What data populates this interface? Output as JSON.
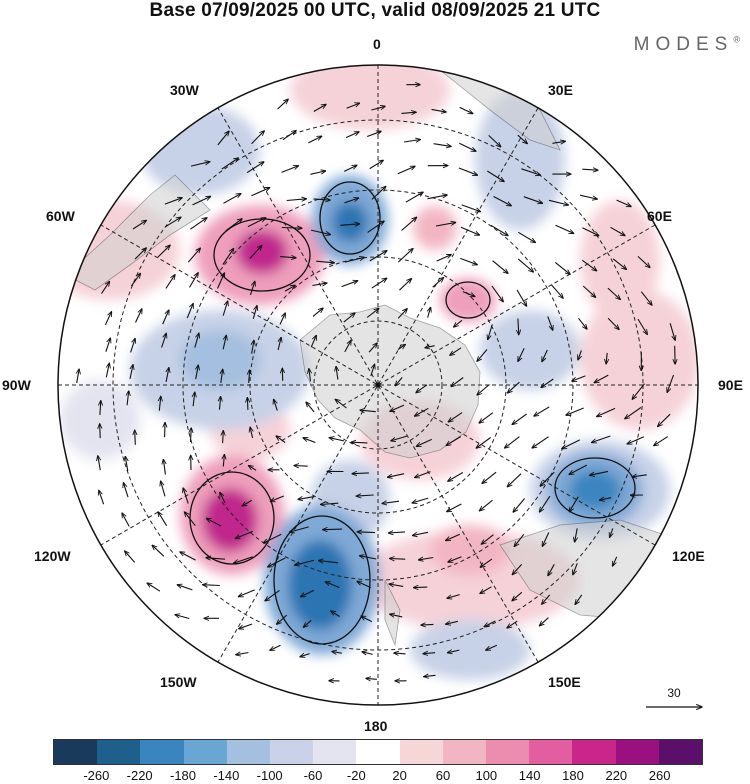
{
  "title": "Base 07/09/2025 00 UTC, valid 08/09/2025 21 UTC",
  "brand": "MODES",
  "brand_mark": "®",
  "map": {
    "projection": "south-polar-stereographic",
    "meridian_labels": {
      "m0": "0",
      "m30e": "30E",
      "m60e": "60E",
      "m90e": "90E",
      "m120e": "120E",
      "m150e": "150E",
      "m180": "180",
      "m150w": "150W",
      "m120w": "120W",
      "m90w": "90W",
      "m60w": "60W",
      "m30w": "30W"
    }
  },
  "wind_scale": {
    "label": "30"
  },
  "colorbar": {
    "colors": [
      "#1a3a5c",
      "#1f5f8b",
      "#3a85c0",
      "#6aa6d4",
      "#a4bfdf",
      "#c9d2e8",
      "#e4e4f1",
      "#ffffff",
      "#f7d6d8",
      "#f2b6c3",
      "#ec8db0",
      "#e25ea0",
      "#c8268b",
      "#9a1080",
      "#5a0f6b"
    ],
    "ticks": [
      "-260",
      "-220",
      "-180",
      "-140",
      "-100",
      "-60",
      "-20",
      "20",
      "60",
      "100",
      "140",
      "180",
      "220",
      "260"
    ]
  },
  "anomaly_colors": {
    "strong_neg": "#2a74b2",
    "neg": "#7fa9d6",
    "weak_neg": "#c7d1e7",
    "weak_pos": "#f5d2d8",
    "pos": "#ee9fbc",
    "strong_pos": "#c0288c",
    "land": "#d3d3d3"
  }
}
